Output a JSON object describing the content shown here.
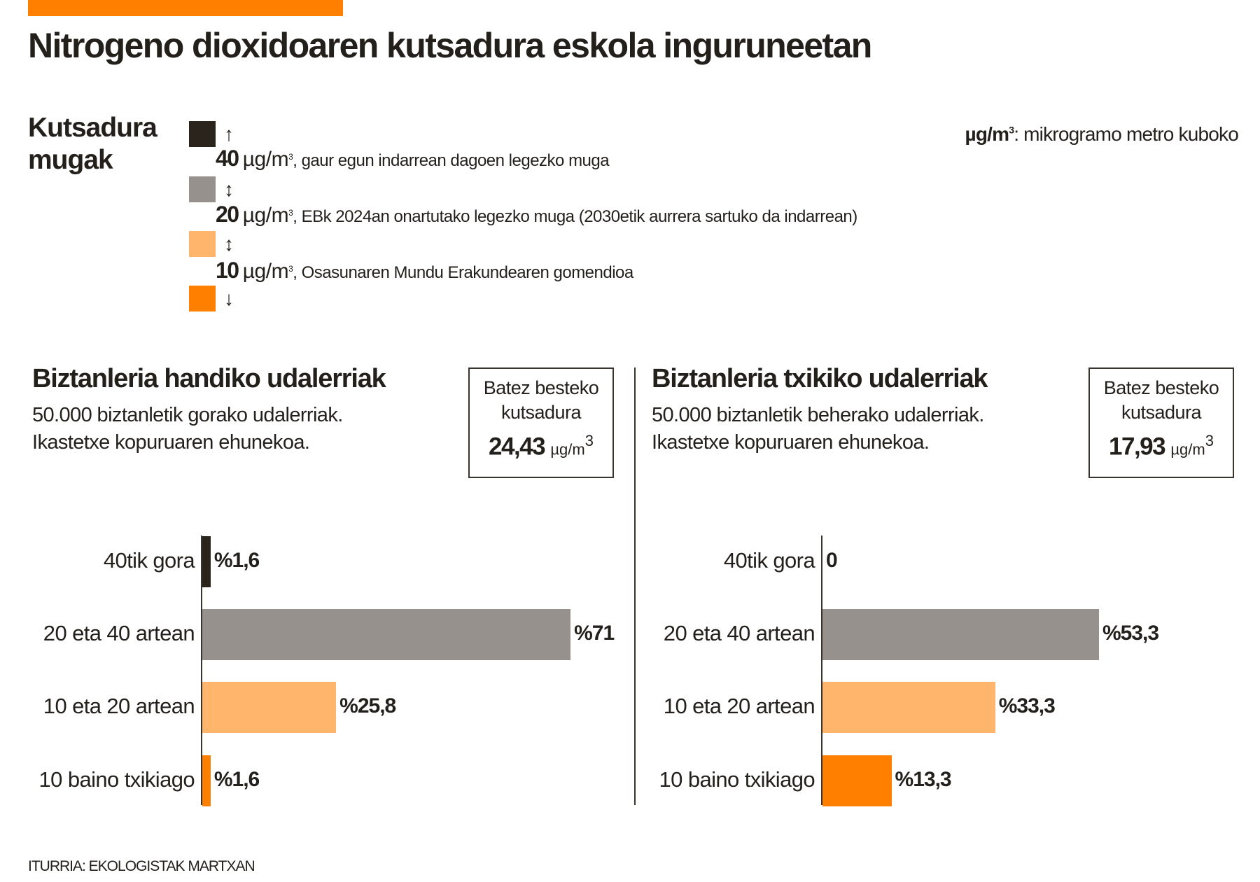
{
  "title": "Nitrogeno dioxidoaren kutsadura eskola inguruneetan",
  "legend": {
    "title_line1": "Kutsadura",
    "title_line2": "mugak",
    "unit_abbr": "µg/m",
    "unit_sup": "3",
    "unit_note_text": ": mikrogramo metro kuboko",
    "swatches": [
      {
        "color": "#2b241c",
        "arrow": "↑"
      },
      {
        "color": "#96918c",
        "arrow": "↕"
      },
      {
        "color": "#ffb56b",
        "arrow": "↕"
      },
      {
        "color": "#ff8000",
        "arrow": "↓"
      }
    ],
    "limits": [
      {
        "value": "40",
        "unit": "µg/m",
        "sup": "3",
        "desc": ", gaur egun indarrean dagoen legezko muga"
      },
      {
        "value": "20",
        "unit": "µg/m",
        "sup": "3",
        "desc": ", EBk 2024an onartutako legezko muga (2030etik aurrera sartuko da indarrean)"
      },
      {
        "value": "10",
        "unit": "µg/m",
        "sup": "3",
        "desc": ", Osasunaren Mundu Erakundearen gomendioa"
      }
    ]
  },
  "chart_data": [
    {
      "type": "bar",
      "orientation": "horizontal",
      "title": "Biztanleria handiko udalerriak",
      "subtitle_line1": "50.000 biztanletik gorako udalerriak.",
      "subtitle_line2": "Ikastetxe kopuruaren ehunekoa.",
      "average_label_line1": "Batez besteko",
      "average_label_line2": "kutsadura",
      "average_value": "24,43",
      "average_unit": "µg/m",
      "average_unit_sup": "3",
      "categories": [
        "40tik gora",
        "20 eta 40 artean",
        "10 eta 20 artean",
        "10 baino txikiago"
      ],
      "values": [
        1.6,
        71,
        25.8,
        1.6
      ],
      "value_labels": [
        "%1,6",
        "%71",
        "%25,8",
        "%1,6"
      ],
      "colors": [
        "#2b241c",
        "#96918c",
        "#ffb56b",
        "#ff8000"
      ]
    },
    {
      "type": "bar",
      "orientation": "horizontal",
      "title": "Biztanleria txikiko udalerriak",
      "subtitle_line1": "50.000 biztanletik beherako udalerriak.",
      "subtitle_line2": "Ikastetxe kopuruaren ehunekoa.",
      "average_label_line1": "Batez besteko",
      "average_label_line2": "kutsadura",
      "average_value": "17,93",
      "average_unit": "µg/m",
      "average_unit_sup": "3",
      "categories": [
        "40tik gora",
        "20 eta 40 artean",
        "10 eta 20 artean",
        "10 baino txikiago"
      ],
      "values": [
        0,
        53.3,
        33.3,
        13.3
      ],
      "value_labels": [
        "0",
        "%53,3",
        "%33,3",
        "%13,3"
      ],
      "colors": [
        "#2b241c",
        "#96918c",
        "#ffb56b",
        "#ff8000"
      ]
    }
  ],
  "source": "ITURRIA: EKOLOGISTAK MARTXAN"
}
